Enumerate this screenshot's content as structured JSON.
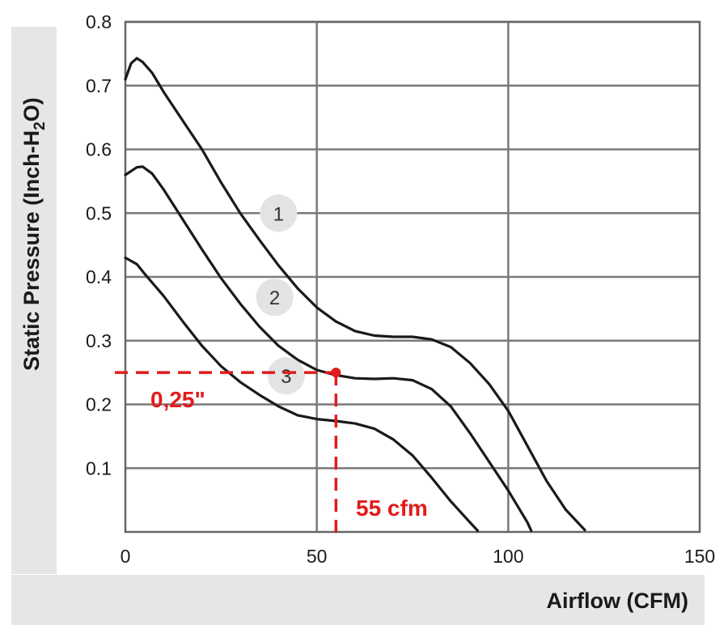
{
  "chart_data": {
    "type": "line",
    "xlabel": "Airflow (CFM)",
    "ylabel": "Static Pressure (Inch-H2O)",
    "ylabel_parts": {
      "prefix": "Static Pressure (Inch-H",
      "sub": "2",
      "suffix": "O)"
    },
    "xlim": [
      0,
      150
    ],
    "ylim": [
      0,
      0.8
    ],
    "x_ticks": [
      0,
      50,
      100,
      150
    ],
    "x_tick_labels": [
      "0",
      "50",
      "100",
      "150"
    ],
    "y_ticks": [
      0.1,
      0.2,
      0.3,
      0.4,
      0.5,
      0.6,
      0.7,
      0.8
    ],
    "y_tick_labels": [
      "0.1",
      "0.2",
      "0.3",
      "0.4",
      "0.5",
      "0.6",
      "0.7",
      "0.8"
    ],
    "grid": true,
    "series": [
      {
        "name": "1",
        "points": [
          [
            0,
            0.71
          ],
          [
            1.5,
            0.735
          ],
          [
            3,
            0.743
          ],
          [
            4.5,
            0.737
          ],
          [
            7,
            0.72
          ],
          [
            10,
            0.69
          ],
          [
            15,
            0.645
          ],
          [
            20,
            0.6
          ],
          [
            25,
            0.548
          ],
          [
            30,
            0.5
          ],
          [
            35,
            0.458
          ],
          [
            40,
            0.418
          ],
          [
            45,
            0.382
          ],
          [
            50,
            0.352
          ],
          [
            55,
            0.33
          ],
          [
            60,
            0.315
          ],
          [
            65,
            0.308
          ],
          [
            70,
            0.306
          ],
          [
            75,
            0.306
          ],
          [
            80,
            0.302
          ],
          [
            85,
            0.29
          ],
          [
            90,
            0.265
          ],
          [
            95,
            0.232
          ],
          [
            100,
            0.19
          ],
          [
            105,
            0.135
          ],
          [
            110,
            0.08
          ],
          [
            115,
            0.035
          ],
          [
            120,
            0.003
          ]
        ]
      },
      {
        "name": "2",
        "points": [
          [
            0,
            0.56
          ],
          [
            1.5,
            0.566
          ],
          [
            3,
            0.572
          ],
          [
            4.5,
            0.573
          ],
          [
            7,
            0.562
          ],
          [
            10,
            0.537
          ],
          [
            15,
            0.49
          ],
          [
            20,
            0.443
          ],
          [
            25,
            0.398
          ],
          [
            30,
            0.358
          ],
          [
            35,
            0.322
          ],
          [
            40,
            0.292
          ],
          [
            45,
            0.27
          ],
          [
            50,
            0.254
          ],
          [
            55,
            0.246
          ],
          [
            60,
            0.241
          ],
          [
            65,
            0.24
          ],
          [
            70,
            0.241
          ],
          [
            75,
            0.238
          ],
          [
            80,
            0.224
          ],
          [
            85,
            0.197
          ],
          [
            90,
            0.155
          ],
          [
            95,
            0.11
          ],
          [
            100,
            0.065
          ],
          [
            105,
            0.015
          ],
          [
            106,
            0.002
          ]
        ]
      },
      {
        "name": "3",
        "points": [
          [
            0,
            0.43
          ],
          [
            3,
            0.42
          ],
          [
            5,
            0.405
          ],
          [
            10,
            0.37
          ],
          [
            15,
            0.33
          ],
          [
            20,
            0.292
          ],
          [
            25,
            0.26
          ],
          [
            30,
            0.235
          ],
          [
            35,
            0.215
          ],
          [
            40,
            0.197
          ],
          [
            45,
            0.183
          ],
          [
            50,
            0.177
          ],
          [
            55,
            0.174
          ],
          [
            60,
            0.17
          ],
          [
            65,
            0.162
          ],
          [
            70,
            0.145
          ],
          [
            75,
            0.12
          ],
          [
            80,
            0.085
          ],
          [
            85,
            0.048
          ],
          [
            90,
            0.015
          ],
          [
            92,
            0.002
          ]
        ]
      }
    ],
    "series_markers": [
      {
        "label": "1",
        "x": 40,
        "y": 0.5
      },
      {
        "label": "2",
        "x": 39,
        "y": 0.368
      },
      {
        "label": "3",
        "x": 42,
        "y": 0.245
      }
    ],
    "annotation": {
      "x": 55,
      "y": 0.25,
      "x_label": "55 cfm",
      "y_label": "0,25\"",
      "color": "#e21b1b"
    },
    "colors": {
      "curve": "#1a1a1a",
      "grid": "#7a7a7a",
      "frame": "#666666",
      "marker_bg": "#e3e3e3",
      "band": "#e6e6e6"
    }
  }
}
